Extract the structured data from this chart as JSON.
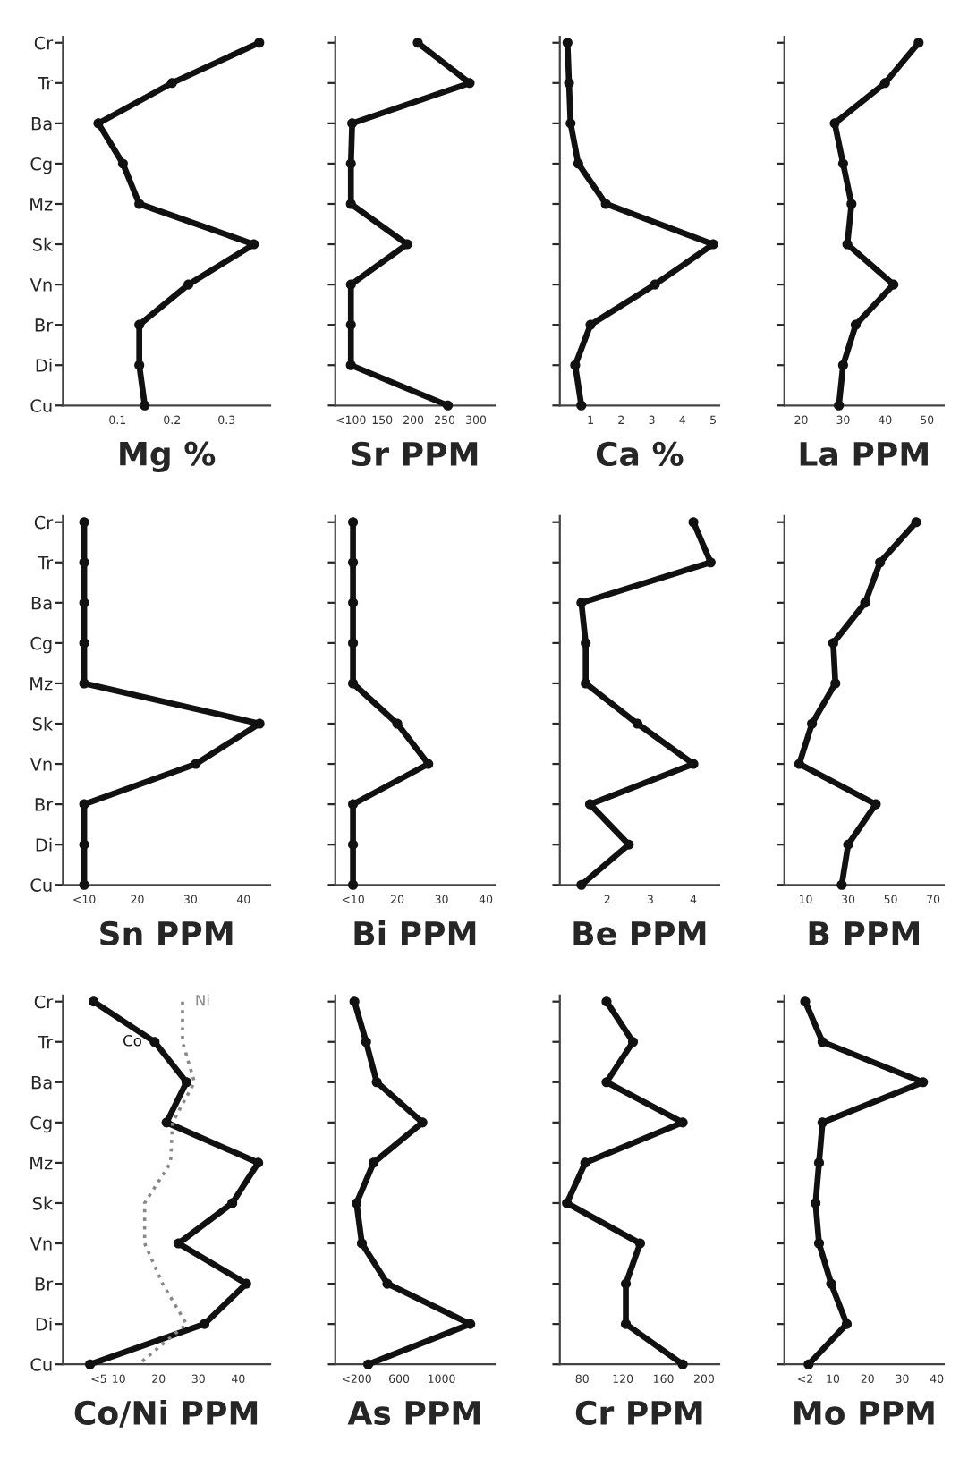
{
  "chart_data": [
    {
      "type": "line",
      "orientation": "horizontal",
      "xlabel": "Mg %",
      "categories": [
        "Cr",
        "Tr",
        "Ba",
        "Cg",
        "Mz",
        "Sk",
        "Vn",
        "Br",
        "Di",
        "Cu"
      ],
      "xlim": [
        0,
        0.38
      ],
      "xticks": [
        0.1,
        0.2,
        0.3
      ],
      "grid": false,
      "marker": "circle",
      "line_style": "solid",
      "legend": false,
      "series": [
        {
          "color": "#111111",
          "values": [
            0.36,
            0.2,
            0.065,
            0.11,
            0.14,
            0.35,
            0.23,
            0.14,
            0.14,
            0.15
          ]
        }
      ]
    },
    {
      "type": "line",
      "orientation": "horizontal",
      "xlabel": "Sr PPM",
      "categories": [
        null,
        null,
        null,
        null,
        null,
        null,
        null,
        null,
        null,
        null
      ],
      "tick_labels": "x",
      "xlim": [
        75,
        330
      ],
      "xticks": [
        {
          "value": 100,
          "label": "<100"
        },
        150,
        200,
        250,
        300
      ],
      "grid": false,
      "marker": "circle",
      "line_style": "solid",
      "legend": false,
      "series": [
        {
          "color": "#111111",
          "values": [
            207,
            290,
            102,
            100,
            100,
            190,
            100,
            100,
            100,
            255
          ]
        }
      ]
    },
    {
      "type": "line",
      "orientation": "horizontal",
      "xlabel": "Ca %",
      "categories": [
        null,
        null,
        null,
        null,
        null,
        null,
        null,
        null,
        null,
        null
      ],
      "tick_labels": "x",
      "xlim": [
        0,
        5.2
      ],
      "xticks": [
        1,
        2,
        3,
        4,
        5
      ],
      "grid": false,
      "marker": "circle",
      "line_style": "solid",
      "legend": false,
      "series": [
        {
          "color": "#111111",
          "values": [
            0.25,
            0.3,
            0.35,
            0.6,
            1.5,
            5.0,
            3.1,
            1.0,
            0.5,
            0.7
          ]
        }
      ]
    },
    {
      "type": "line",
      "orientation": "horizontal",
      "xlabel": "La PPM",
      "categories": [
        null,
        null,
        null,
        null,
        null,
        null,
        null,
        null,
        null,
        null
      ],
      "tick_labels": "x",
      "xlim": [
        16,
        54
      ],
      "xticks": [
        20,
        30,
        40,
        50
      ],
      "grid": false,
      "marker": "circle",
      "line_style": "solid",
      "legend": false,
      "series": [
        {
          "color": "#111111",
          "values": [
            48,
            40,
            28,
            30,
            32,
            31,
            42,
            33,
            30,
            29
          ]
        }
      ]
    },
    {
      "type": "line",
      "orientation": "horizontal",
      "xlabel": "Sn PPM",
      "categories": [
        "Cr",
        "Tr",
        "Ba",
        "Cg",
        "Mz",
        "Sk",
        "Vn",
        "Br",
        "Di",
        "Cu"
      ],
      "xlim": [
        6,
        45
      ],
      "xticks": [
        {
          "value": 10,
          "label": "<10"
        },
        20,
        30,
        40
      ],
      "grid": false,
      "marker": "circle",
      "line_style": "solid",
      "legend": false,
      "series": [
        {
          "color": "#111111",
          "values": [
            10,
            10,
            10,
            10,
            10,
            43,
            31,
            10,
            10,
            10
          ]
        }
      ]
    },
    {
      "type": "line",
      "orientation": "horizontal",
      "xlabel": "Bi PPM",
      "categories": [
        null,
        null,
        null,
        null,
        null,
        null,
        null,
        null,
        null,
        null
      ],
      "tick_labels": "x",
      "xlim": [
        6,
        42
      ],
      "xticks": [
        {
          "value": 10,
          "label": "<10"
        },
        20,
        30,
        40
      ],
      "grid": false,
      "marker": "circle",
      "line_style": "solid",
      "legend": false,
      "series": [
        {
          "color": "#111111",
          "values": [
            10,
            10,
            10,
            10,
            10,
            20,
            27,
            10,
            10,
            10
          ]
        }
      ]
    },
    {
      "type": "line",
      "orientation": "horizontal",
      "xlabel": "Be PPM",
      "categories": [
        null,
        null,
        null,
        null,
        null,
        null,
        null,
        null,
        null,
        null
      ],
      "tick_labels": "x",
      "xlim": [
        0.9,
        4.6
      ],
      "xticks": [
        2,
        3,
        4
      ],
      "grid": false,
      "marker": "circle",
      "line_style": "solid",
      "legend": false,
      "series": [
        {
          "color": "#111111",
          "values": [
            4.0,
            4.4,
            1.4,
            1.5,
            1.5,
            2.7,
            4.0,
            1.6,
            2.5,
            1.4
          ]
        }
      ]
    },
    {
      "type": "line",
      "orientation": "horizontal",
      "xlabel": "B PPM",
      "categories": [
        null,
        null,
        null,
        null,
        null,
        null,
        null,
        null,
        null,
        null
      ],
      "tick_labels": "x",
      "xlim": [
        0,
        75
      ],
      "xticks": [
        10,
        30,
        50,
        70
      ],
      "grid": false,
      "marker": "circle",
      "line_style": "solid",
      "legend": false,
      "series": [
        {
          "color": "#111111",
          "values": [
            62,
            45,
            38,
            23,
            24,
            13,
            7,
            43,
            30,
            27
          ]
        }
      ]
    },
    {
      "type": "line",
      "orientation": "horizontal",
      "xlabel": "Co/Ni PPM",
      "categories": [
        "Cr",
        "Tr",
        "Ba",
        "Cg",
        "Mz",
        "Sk",
        "Vn",
        "Br",
        "Di",
        "Cu"
      ],
      "xlim": [
        -4,
        48
      ],
      "xticks": [
        {
          "value": 5,
          "label": "<5"
        },
        10,
        20,
        30,
        40
      ],
      "grid": false,
      "marker": "circle",
      "line_style": "solid",
      "legend": false,
      "series": [
        {
          "name": "Co",
          "color": "#111111",
          "values": [
            3.7,
            19,
            27,
            22,
            45,
            38.5,
            25,
            42,
            31.5,
            2.8
          ]
        },
        {
          "name": "Ni",
          "color": "#888888",
          "line_style": "dotted",
          "marker": "none",
          "values": [
            26,
            26,
            29,
            23.5,
            23,
            16.5,
            16.5,
            21,
            27,
            15
          ]
        }
      ]
    },
    {
      "type": "line",
      "orientation": "horizontal",
      "xlabel": "As PPM",
      "categories": [
        null,
        null,
        null,
        null,
        null,
        null,
        null,
        null,
        null,
        null
      ],
      "tick_labels": "x",
      "xlim": [
        0,
        1500
      ],
      "xticks": [
        {
          "value": 200,
          "label": "<200"
        },
        600,
        1000
      ],
      "grid": false,
      "marker": "circle",
      "line_style": "solid",
      "legend": false,
      "series": [
        {
          "color": "#111111",
          "values": [
            180,
            290,
            390,
            820,
            360,
            200,
            250,
            490,
            1270,
            310
          ]
        }
      ]
    },
    {
      "type": "line",
      "orientation": "horizontal",
      "xlabel": "Cr PPM",
      "categories": [
        null,
        null,
        null,
        null,
        null,
        null,
        null,
        null,
        null,
        null
      ],
      "tick_labels": "x",
      "xlim": [
        58,
        215
      ],
      "xticks": [
        80,
        120,
        160,
        200
      ],
      "grid": false,
      "marker": "circle",
      "line_style": "solid",
      "legend": false,
      "series": [
        {
          "color": "#111111",
          "values": [
            104,
            130,
            104,
            179,
            83,
            65,
            137,
            123,
            123,
            179
          ]
        }
      ]
    },
    {
      "type": "line",
      "orientation": "horizontal",
      "xlabel": "Mo PPM",
      "categories": [
        null,
        null,
        null,
        null,
        null,
        null,
        null,
        null,
        null,
        null
      ],
      "tick_labels": "x",
      "xlim": [
        -4,
        42
      ],
      "xticks": [
        {
          "value": 2,
          "label": "<2"
        },
        10,
        20,
        30,
        40
      ],
      "grid": false,
      "marker": "circle",
      "line_style": "solid",
      "legend": false,
      "series": [
        {
          "color": "#111111",
          "values": [
            2,
            7,
            36,
            7,
            6,
            5,
            6,
            9.5,
            14,
            3
          ]
        }
      ]
    }
  ]
}
